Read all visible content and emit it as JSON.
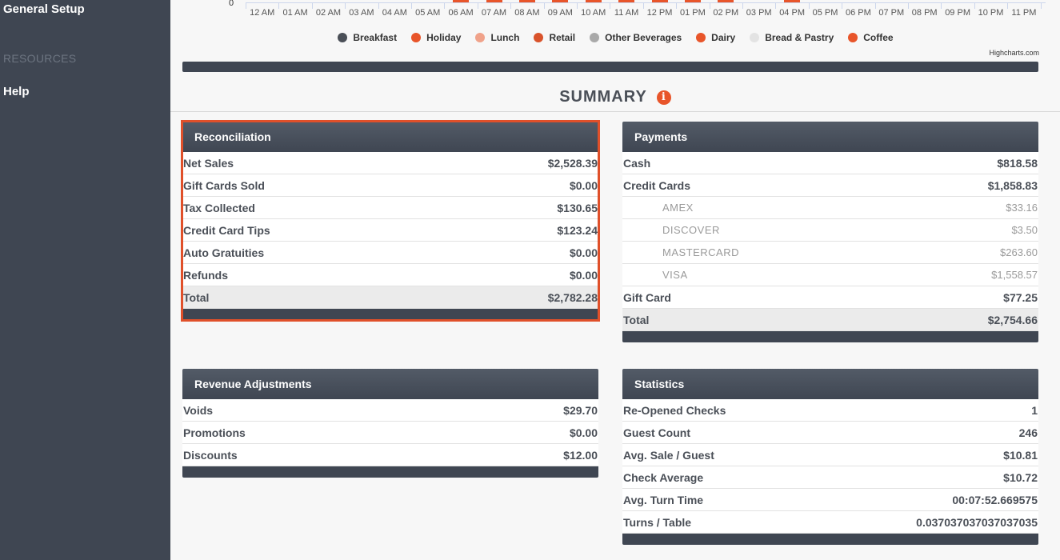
{
  "sidebar": {
    "general_setup": "General Setup",
    "resources_heading": "RESOURCES",
    "help": "Help"
  },
  "chart_data": {
    "type": "bar",
    "y_axis_zero_label": "0",
    "categories": [
      "12 AM",
      "01 AM",
      "02 AM",
      "03 AM",
      "04 AM",
      "05 AM",
      "06 AM",
      "07 AM",
      "08 AM",
      "09 AM",
      "10 AM",
      "11 AM",
      "12 PM",
      "01 PM",
      "02 PM",
      "03 PM",
      "04 PM",
      "05 PM",
      "06 PM",
      "07 PM",
      "08 PM",
      "09 PM",
      "10 PM",
      "11 PM"
    ],
    "bars_visible_at": [
      "06 AM",
      "07 AM",
      "08 AM",
      "09 AM",
      "10 AM",
      "11 AM",
      "12 PM",
      "01 PM",
      "02 PM",
      "04 PM"
    ],
    "legend": [
      {
        "name": "Breakfast",
        "color": "#4a4f57"
      },
      {
        "name": "Holiday",
        "color": "#e8552a"
      },
      {
        "name": "Lunch",
        "color": "#f0a28a"
      },
      {
        "name": "Retail",
        "color": "#d9532b"
      },
      {
        "name": "Other Beverages",
        "color": "#a9a9a9"
      },
      {
        "name": "Dairy",
        "color": "#e8552a"
      },
      {
        "name": "Bread & Pastry",
        "color": "#e3e3e3"
      },
      {
        "name": "Coffee",
        "color": "#e8552a"
      }
    ],
    "credits": "Highcharts.com"
  },
  "summary": {
    "title": "SUMMARY",
    "info_icon": "i"
  },
  "reconciliation": {
    "title": "Reconciliation",
    "rows": [
      {
        "label": "Net Sales",
        "value": "$2,528.39"
      },
      {
        "label": "Gift Cards Sold",
        "value": "$0.00"
      },
      {
        "label": "Tax Collected",
        "value": "$130.65"
      },
      {
        "label": "Credit Card Tips",
        "value": "$123.24"
      },
      {
        "label": "Auto Gratuities",
        "value": "$0.00"
      },
      {
        "label": "Refunds",
        "value": "$0.00"
      }
    ],
    "total": {
      "label": "Total",
      "value": "$2,782.28"
    }
  },
  "payments": {
    "title": "Payments",
    "rows": [
      {
        "label": "Cash",
        "value": "$818.58"
      },
      {
        "label": "Credit Cards",
        "value": "$1,858.83"
      },
      {
        "label": "AMEX",
        "value": "$33.16"
      },
      {
        "label": "DISCOVER",
        "value": "$3.50"
      },
      {
        "label": "MASTERCARD",
        "value": "$263.60"
      },
      {
        "label": "VISA",
        "value": "$1,558.57"
      },
      {
        "label": "Gift Card",
        "value": "$77.25"
      }
    ],
    "total": {
      "label": "Total",
      "value": "$2,754.66"
    }
  },
  "revenue_adjustments": {
    "title": "Revenue Adjustments",
    "rows": [
      {
        "label": "Voids",
        "value": "$29.70"
      },
      {
        "label": "Promotions",
        "value": "$0.00"
      },
      {
        "label": "Discounts",
        "value": "$12.00"
      }
    ]
  },
  "statistics": {
    "title": "Statistics",
    "rows": [
      {
        "label": "Re-Opened Checks",
        "value": "1"
      },
      {
        "label": "Guest Count",
        "value": "246"
      },
      {
        "label": "Avg. Sale / Guest",
        "value": "$10.81"
      },
      {
        "label": "Check Average",
        "value": "$10.72"
      },
      {
        "label": "Avg. Turn Time",
        "value": "00:07:52.669575"
      },
      {
        "label": "Turns / Table",
        "value": "0.037037037037037035"
      }
    ]
  }
}
